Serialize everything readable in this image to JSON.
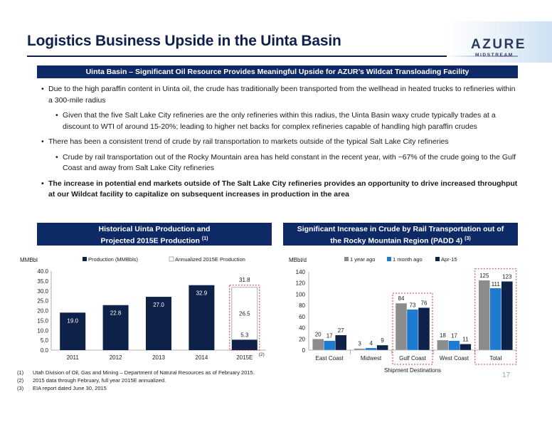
{
  "header": {
    "title": "Logistics Business Upside in the Uinta Basin",
    "logo_word": "AZURE",
    "logo_sub": "MIDSTREAM"
  },
  "banner": "Uinta Basin – Significant Oil Resource Provides Meaningful Upside for AZUR’s Wildcat Transloading Facility",
  "bullets": [
    {
      "level": 1,
      "bold": false,
      "text": "Due to the high paraffin content in Uinta oil, the crude has traditionally been transported from the wellhead in heated trucks to refineries within a 300-mile radius"
    },
    {
      "level": 2,
      "bold": false,
      "text": "Given that the five Salt Lake City refineries are the only refineries within this radius, the Uinta Basin waxy crude typically trades at a discount to WTI of around 15-20%; leading to higher net backs for complex refineries capable of handling high paraffin crudes"
    },
    {
      "level": 1,
      "bold": false,
      "text": "There has been a consistent trend of crude by rail transportation to markets outside of the typical Salt Lake City refineries"
    },
    {
      "level": 2,
      "bold": false,
      "text": "Crude by rail transportation out of the Rocky Mountain area has held constant in the recent year, with ~67% of the crude going to the Gulf Coast and away from Salt Lake City refineries"
    },
    {
      "level": 1,
      "bold": true,
      "text": "The increase in potential end markets outside of The Salt Lake City refineries provides an opportunity to drive increased throughput at our Wildcat facility to capitalize on subsequent increases in production in the area"
    }
  ],
  "left_panel": {
    "title_line1": "Historical Uinta Production and",
    "title_line2": "Projected 2015E Production",
    "title_note": "(1)"
  },
  "right_panel": {
    "title_line1": "Significant Increase in Crude by Rail Transportation out of",
    "title_line2": "the Rocky Mountain Region (PADD 4)",
    "title_note": "(3)"
  },
  "chart_data": [
    {
      "type": "bar",
      "title": "",
      "ylabel": "MMBbl",
      "xlabel": "",
      "categories": [
        "2011",
        "2012",
        "2013",
        "2014",
        "2015E"
      ],
      "series": [
        {
          "name": "Production (MMBbls)",
          "values": [
            19.0,
            22.8,
            27.0,
            32.9,
            5.3
          ]
        },
        {
          "name": "Annualized 2015E Production",
          "values": [
            null,
            null,
            null,
            null,
            26.5
          ]
        }
      ],
      "stacked": true,
      "total_labels": [
        null,
        null,
        null,
        null,
        "31.8"
      ],
      "category_notes": [
        null,
        null,
        null,
        null,
        "(2)"
      ],
      "ylim": [
        0,
        40
      ],
      "yticks": [
        "0.0",
        "5.0",
        "10.0",
        "15.0",
        "20.0",
        "25.0",
        "30.0",
        "35.0",
        "40.0"
      ],
      "legend": "top",
      "colors": {
        "production": "#0d2149",
        "annualized": "#ffffff",
        "annualized_border": "#9a9a9a",
        "total_box": "#c00000"
      }
    },
    {
      "type": "bar",
      "title": "",
      "ylabel": "MBbl/d",
      "xlabel": "Shipment Destinations",
      "categories": [
        "East Coast",
        "Midwest",
        "Gulf Coast",
        "West Coast",
        "Total"
      ],
      "series": [
        {
          "name": "1 year ago",
          "values": [
            20,
            3,
            84,
            18,
            125
          ]
        },
        {
          "name": "1 month ago",
          "values": [
            17,
            4,
            73,
            17,
            111
          ]
        },
        {
          "name": "Apr-15",
          "values": [
            27,
            9,
            76,
            11,
            123
          ]
        }
      ],
      "ylim": [
        0,
        140
      ],
      "yticks": [
        "0",
        "20",
        "40",
        "60",
        "80",
        "100",
        "120",
        "140"
      ],
      "legend": "top",
      "colors": {
        "s0": "#8c8c8c",
        "s1": "#1f7bd0",
        "s2": "#0d2149",
        "total_box": "#c00000"
      }
    }
  ],
  "footnotes": [
    {
      "num": "(1)",
      "text": "Utah Division of Oil, Gas and Mining – Department of Natural Resources as of February 2015."
    },
    {
      "num": "(2)",
      "text": "2015 data through February, full year 2015E annualized."
    },
    {
      "num": "(3)",
      "text": "EIA report dated June 30, 2015"
    }
  ],
  "page_number": "17"
}
